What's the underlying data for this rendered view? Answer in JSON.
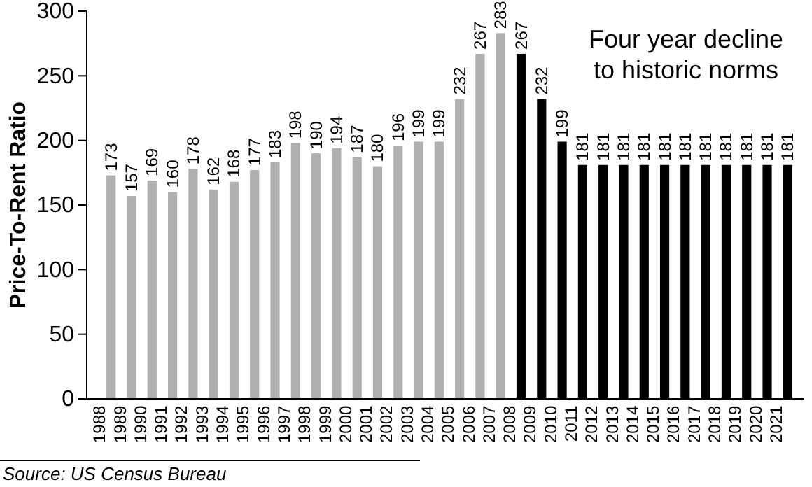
{
  "chart_data": {
    "type": "bar",
    "ylabel": "Price-To-Rent Ratio",
    "categories": [
      "1988",
      "1989",
      "1990",
      "1991",
      "1992",
      "1993",
      "1994",
      "1995",
      "1996",
      "1997",
      "1998",
      "1999",
      "2000",
      "2001",
      "2002",
      "2003",
      "2004",
      "2005",
      "2006",
      "2007",
      "2008",
      "2009",
      "2010",
      "2011",
      "2012",
      "2013",
      "2014",
      "2015",
      "2016",
      "2017",
      "2018",
      "2019",
      "2020",
      "2021"
    ],
    "values": [
      173,
      157,
      169,
      160,
      178,
      162,
      168,
      177,
      183,
      198,
      190,
      194,
      187,
      180,
      196,
      199,
      199,
      232,
      267,
      283,
      267,
      232,
      199,
      181,
      181,
      181,
      181,
      181,
      181,
      181,
      181,
      181,
      181,
      181
    ],
    "colors": [
      "#b0b0b0",
      "#b0b0b0",
      "#b0b0b0",
      "#b0b0b0",
      "#b0b0b0",
      "#b0b0b0",
      "#b0b0b0",
      "#b0b0b0",
      "#b0b0b0",
      "#b0b0b0",
      "#b0b0b0",
      "#b0b0b0",
      "#b0b0b0",
      "#b0b0b0",
      "#b0b0b0",
      "#b0b0b0",
      "#b0b0b0",
      "#b0b0b0",
      "#b0b0b0",
      "#b0b0b0",
      "#000000",
      "#000000",
      "#000000",
      "#000000",
      "#000000",
      "#000000",
      "#000000",
      "#000000",
      "#000000",
      "#000000",
      "#000000",
      "#000000",
      "#000000",
      "#000000"
    ],
    "ylim": [
      0,
      300
    ],
    "yticks": [
      0,
      50,
      100,
      150,
      200,
      250,
      300
    ],
    "grid": false,
    "data_labels": true,
    "annotations": [
      "Four year decline\nto historic norms",
      "Source: US Census Bureau"
    ]
  }
}
